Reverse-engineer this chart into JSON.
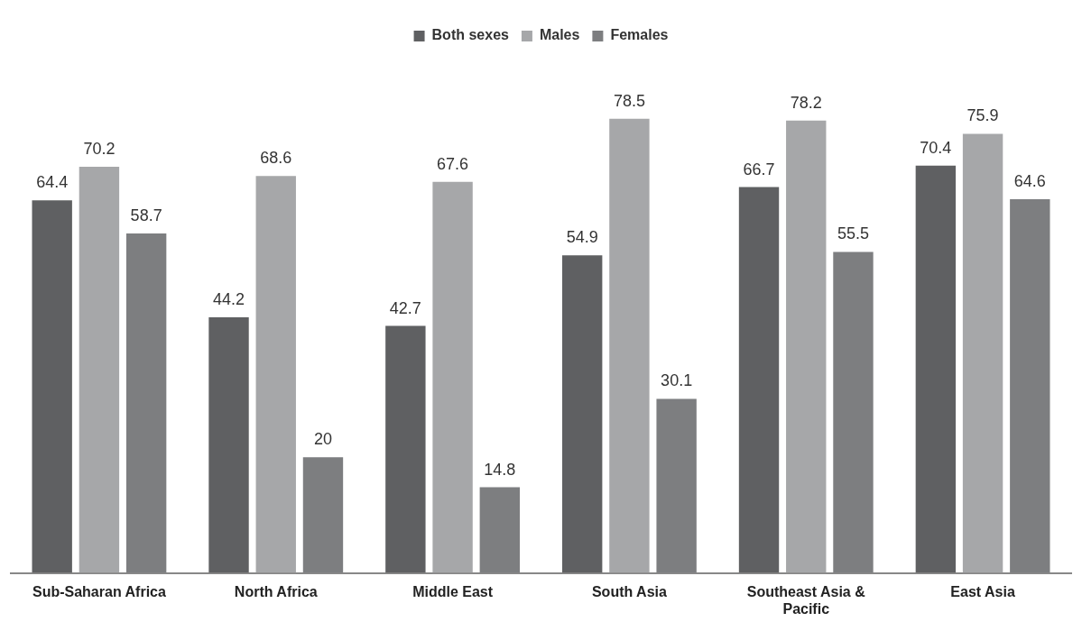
{
  "chart_data": {
    "type": "bar",
    "categories": [
      "Sub-Saharan Africa",
      "North Africa",
      "Middle East",
      "South Asia",
      "Southeast Asia & Pacific",
      "East Asia"
    ],
    "series": [
      {
        "name": "Both sexes",
        "color": "#5f6062",
        "values": [
          64.4,
          44.2,
          42.7,
          54.9,
          66.7,
          70.4
        ]
      },
      {
        "name": "Males",
        "color": "#a6a7a9",
        "values": [
          70.2,
          68.6,
          67.6,
          78.5,
          78.2,
          75.9
        ]
      },
      {
        "name": "Females",
        "color": "#7d7e80",
        "values": [
          58.7,
          20,
          14.8,
          30.1,
          55.5,
          64.6
        ]
      }
    ],
    "data_labels": true,
    "legend": "top",
    "grid": false
  }
}
